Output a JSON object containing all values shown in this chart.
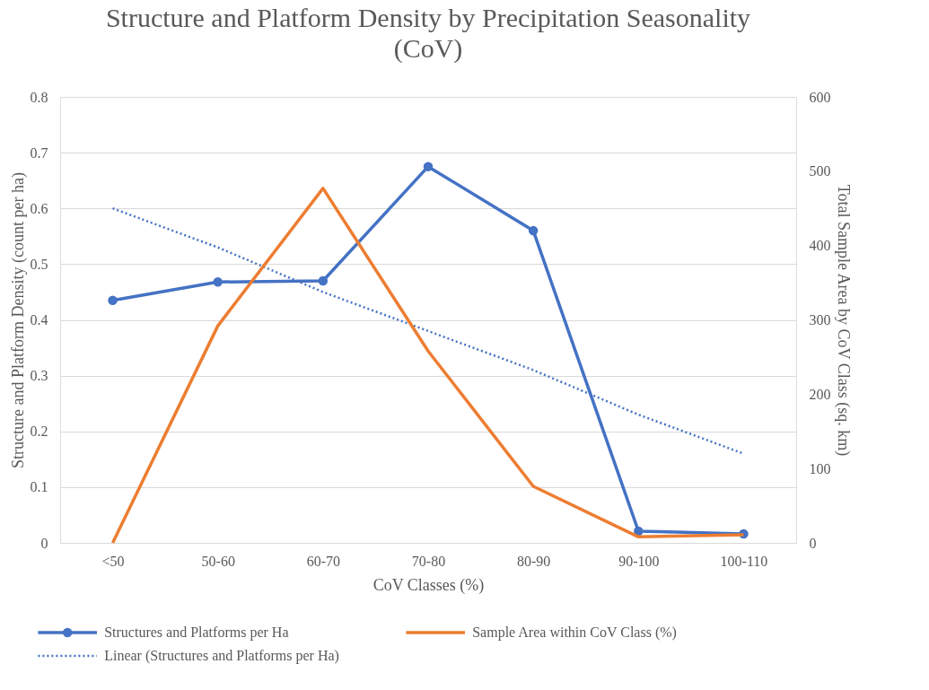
{
  "chart_data": {
    "type": "line",
    "title": "Structure and Platform Density by Precipitation Seasonality (CoV)",
    "xlabel": "CoV Classes (%)",
    "ylabel": "Structure and Platform Density (count per ha)",
    "y2label": "Total Sample Area by CoV Class (sq. km)",
    "categories": [
      "<50",
      "50-60",
      "60-70",
      "70-80",
      "80-90",
      "90-100",
      "100-110"
    ],
    "ylim": [
      0,
      0.8
    ],
    "yticks": [
      0,
      0.1,
      0.2,
      0.3,
      0.4,
      0.5,
      0.6,
      0.7,
      0.8
    ],
    "y2lim": [
      0,
      600
    ],
    "y2ticks": [
      0,
      100,
      200,
      300,
      400,
      500,
      600
    ],
    "grid": "y",
    "legend": "bottom",
    "series": [
      {
        "name": "Structures and Platforms per Ha",
        "color": "#4472c4",
        "values": [
          0.435,
          0.468,
          0.47,
          0.675,
          0.56,
          0.021,
          0.016
        ],
        "marker": "circle",
        "line_style": "solid"
      },
      {
        "name": "Sample Area within CoV Class (%)",
        "color": "#ed7d31",
        "values": [
          0,
          292,
          477,
          258,
          76,
          8,
          11
        ],
        "axis": "y2",
        "marker": "none",
        "line_style": "solid"
      },
      {
        "name": "Linear (Structures and Platforms per Ha)",
        "color": "#4472c4",
        "values": [
          0.6,
          0.53,
          0.45,
          0.38,
          0.31,
          0.23,
          0.16
        ],
        "marker": "none",
        "line_style": "dotted"
      }
    ]
  }
}
